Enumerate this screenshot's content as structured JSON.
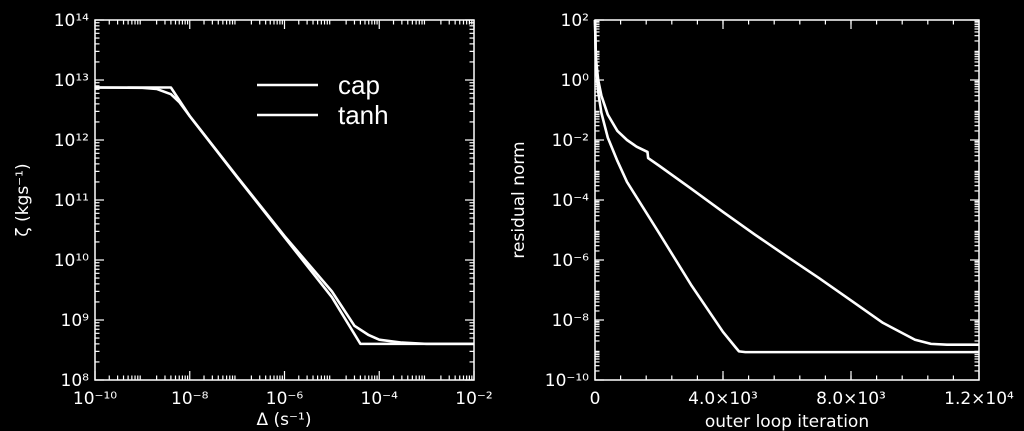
{
  "chart_data": [
    {
      "type": "line",
      "xscale": "log",
      "yscale": "log",
      "xlim": [
        1e-10,
        0.01
      ],
      "ylim": [
        100000000.0,
        100000000000000.0
      ],
      "xlabel": "Δ (s⁻¹)",
      "ylabel": "ζ (kgs⁻¹)",
      "xticks": [
        1e-10,
        1e-08,
        1e-06,
        0.0001,
        0.01
      ],
      "xtick_labels": [
        "10⁻¹⁰",
        "10⁻⁸",
        "10⁻⁶",
        "10⁻⁴",
        "10⁻²"
      ],
      "yticks": [
        100000000.0,
        1000000000.0,
        10000000000.0,
        100000000000.0,
        1000000000000.0,
        10000000000000.0,
        100000000000000.0
      ],
      "ytick_labels": [
        "10⁸",
        "10⁹",
        "10¹⁰",
        "10¹¹",
        "10¹²",
        "10¹³",
        "10¹⁴"
      ],
      "legend": {
        "position": "top-center",
        "entries": [
          "cap",
          "tanh"
        ]
      },
      "series": [
        {
          "name": "cap",
          "x": [
            1e-10,
            4e-09,
            1e-08,
            1e-07,
            1e-06,
            1e-05,
            4e-05,
            0.0001,
            0.001,
            0.01
          ],
          "y": [
            7500000000000.0,
            7500000000000.0,
            2500000000000.0,
            240000000000.0,
            24000000000.0,
            2400000000.0,
            400000000.0,
            400000000.0,
            400000000.0,
            400000000.0
          ]
        },
        {
          "name": "tanh",
          "x": [
            1e-10,
            1e-09,
            2e-09,
            4e-09,
            6e-09,
            1e-08,
            1e-07,
            1e-06,
            1e-05,
            3e-05,
            6e-05,
            0.0001,
            0.0003,
            0.001,
            0.01
          ],
          "y": [
            7500000000000.0,
            7400000000000.0,
            7100000000000.0,
            5800000000000.0,
            4300000000000.0,
            2500000000000.0,
            245000000000.0,
            25000000000.0,
            3000000000.0,
            800000000.0,
            560000000.0,
            470000000.0,
            420000000.0,
            400000000.0,
            400000000.0
          ]
        }
      ]
    },
    {
      "type": "line",
      "xscale": "linear",
      "yscale": "log",
      "xlim": [
        0,
        12000
      ],
      "ylim": [
        1e-10,
        100.0
      ],
      "xlabel": "outer loop iteration",
      "ylabel": "residual norm",
      "xticks": [
        0,
        4000,
        8000,
        12000
      ],
      "xtick_labels": [
        "0",
        "4.0×10³",
        "8.0×10³",
        "1.2×10⁴"
      ],
      "yticks": [
        1e-10,
        1e-08,
        1e-06,
        0.0001,
        0.01,
        1,
        100
      ],
      "ytick_labels": [
        "10⁻¹⁰",
        "10⁻⁸",
        "10⁻⁶",
        "10⁻⁴",
        "10⁻²",
        "10⁰",
        "10²"
      ],
      "series": [
        {
          "x": [
            0,
            30,
            100,
            200,
            400,
            700,
            1000,
            1300,
            1640,
            1660,
            2000,
            3000,
            4000,
            5000,
            6000,
            7000,
            8000,
            9000,
            10000,
            10500,
            11000,
            12000
          ],
          "y": [
            100,
            5,
            1,
            0.3,
            0.07,
            0.02,
            0.01,
            0.006,
            0.004,
            0.0025,
            0.0014,
            0.00024,
            4e-05,
            7e-06,
            1.3e-06,
            2.5e-07,
            4.5e-08,
            8e-09,
            2.2e-09,
            1.6e-09,
            1.5e-09,
            1.5e-09
          ]
        },
        {
          "x": [
            0,
            30,
            100,
            200,
            400,
            700,
            1000,
            2000,
            3000,
            4000,
            4400,
            4500,
            4700,
            5000,
            6000,
            8000,
            10000,
            12000
          ],
          "y": [
            100,
            3,
            0.4,
            0.08,
            0.012,
            0.002,
            0.0004,
            8e-06,
            1.5e-07,
            4e-09,
            1.2e-09,
            9e-10,
            8.5e-10,
            8.5e-10,
            8.5e-10,
            8.5e-10,
            8.5e-10,
            8.5e-10
          ]
        }
      ]
    }
  ]
}
